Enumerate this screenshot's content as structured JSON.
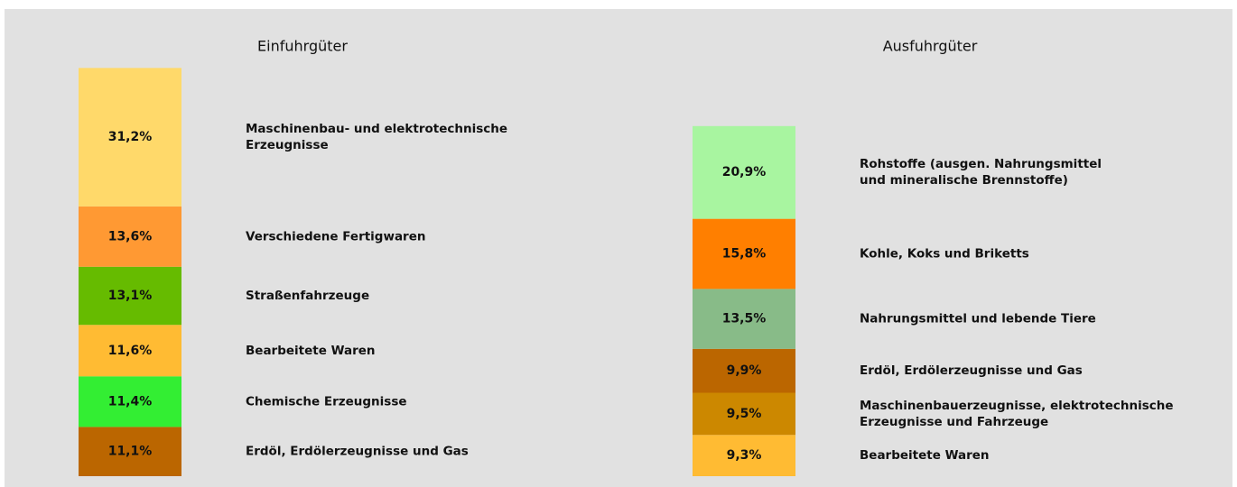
{
  "chart_data": [
    {
      "type": "stacked-bar",
      "title": "Einfuhrgüter",
      "categories": [
        "Maschinenbau- und elektrotechnische\nErzeugnisse",
        "Verschiedene Fertigwaren",
        "Straßenfahrzeuge",
        "Bearbeitete Waren",
        "Chemische Erzeugnisse",
        "Erdöl, Erdölerzeugnisse und Gas"
      ],
      "values": [
        31.2,
        13.6,
        13.1,
        11.6,
        11.4,
        11.1
      ],
      "value_labels": [
        "31,2%",
        "13,6%",
        "13,1%",
        "11,6%",
        "11,4%",
        "11,1%"
      ],
      "colors": [
        "#ffd96a",
        "#ff9933",
        "#66bb00",
        "#ffbb33",
        "#33ee33",
        "#bb6600"
      ]
    },
    {
      "type": "stacked-bar",
      "title": "Ausfuhrgüter",
      "categories": [
        "Rohstoffe (ausgen. Nahrungsmittel\nund mineralische Brennstoffe)",
        "Kohle, Koks und Briketts",
        "Nahrungsmittel und lebende Tiere",
        "Erdöl, Erdölerzeugnisse und Gas",
        "Maschinenbauerzeugnisse, elektrotechnische\nErzeugnisse und Fahrzeuge",
        "Bearbeitete Waren"
      ],
      "values": [
        20.9,
        15.8,
        13.5,
        9.9,
        9.5,
        9.3
      ],
      "value_labels": [
        "20,9%",
        "15,8%",
        "13,5%",
        "9,9%",
        "9,5%",
        "9,3%"
      ],
      "colors": [
        "#a8f5a0",
        "#ff7f00",
        "#88bb88",
        "#bb6600",
        "#cc8800",
        "#ffbb33"
      ]
    }
  ]
}
